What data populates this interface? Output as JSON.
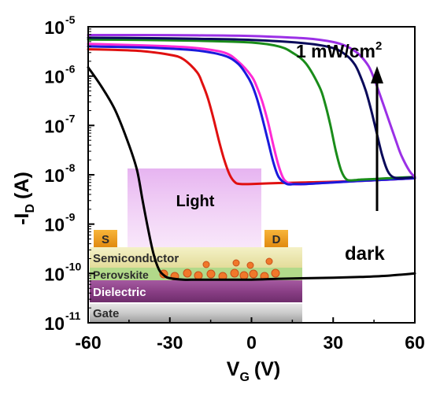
{
  "chart_data": {
    "type": "line",
    "title": "",
    "xlabel": "V",
    "xlabel_sub": "G",
    "xlabel_unit": "(V)",
    "ylabel": "-I",
    "ylabel_sub": "D",
    "ylabel_unit": "(A)",
    "xlim": [
      -60,
      60
    ],
    "ylim": [
      1e-11,
      1e-05
    ],
    "yscale": "log",
    "x_ticks": [
      -60,
      -30,
      0,
      30,
      60
    ],
    "x_tick_labels": [
      "-60",
      "-30",
      "0",
      "30",
      "60"
    ],
    "y_ticks": [
      -11,
      -10,
      -9,
      -8,
      -7,
      -6,
      -5
    ],
    "y_tick_base": "10",
    "y_tick_exps": [
      "-11",
      "-10",
      "-9",
      "-8",
      "-7",
      "-6",
      "-5"
    ],
    "grid": false,
    "legend": "none",
    "annotations": {
      "intensity": "1 mW/cm",
      "intensity_sup": "2",
      "dark": "dark",
      "light": "Light"
    },
    "inset": {
      "source": "S",
      "drain": "D",
      "layers": [
        "Semiconductor",
        "Perovskite",
        "Dielectric",
        "Gate"
      ]
    },
    "series": [
      {
        "color": "#000000",
        "x": [
          -60,
          -55,
          -50,
          -45,
          -42,
          -40,
          -38,
          -36,
          -34,
          -32,
          -30,
          -25,
          -20,
          -10,
          0,
          10,
          20,
          30,
          40,
          50,
          60
        ],
        "y": [
          1.5e-06,
          6e-07,
          2e-07,
          4e-08,
          1.2e-08,
          3e-09,
          8e-10,
          2.5e-10,
          1.2e-10,
          9e-11,
          8e-11,
          7.5e-11,
          7.5e-11,
          7.5e-11,
          7.5e-11,
          7.8e-11,
          8e-11,
          8.2e-11,
          8.5e-11,
          9e-11,
          1e-10
        ]
      },
      {
        "color": "#e01010",
        "x": [
          -60,
          -50,
          -40,
          -30,
          -25,
          -20,
          -18,
          -16,
          -14,
          -12,
          -10,
          -8,
          -6,
          -4,
          0,
          10,
          20,
          30,
          40,
          50,
          60
        ],
        "y": [
          3.5e-06,
          3.4e-06,
          3.2e-06,
          2.7e-06,
          2.2e-06,
          1.2e-06,
          7e-07,
          3.5e-07,
          1.4e-07,
          5e-08,
          2e-08,
          1e-08,
          7e-09,
          6.5e-09,
          6.5e-09,
          6.8e-09,
          7e-09,
          7.2e-09,
          7.5e-09,
          8e-09,
          8.5e-09
        ]
      },
      {
        "color": "#ff2ad4",
        "x": [
          -60,
          -40,
          -30,
          -20,
          -10,
          -5,
          0,
          2,
          4,
          6,
          8,
          10,
          12,
          15,
          20,
          30,
          40,
          50,
          60
        ],
        "y": [
          4.5e-06,
          4.2e-06,
          4e-06,
          3.7e-06,
          3e-06,
          2e-06,
          1e-06,
          6e-07,
          3e-07,
          1.2e-07,
          4e-08,
          1.5e-08,
          8e-09,
          6.5e-09,
          6.5e-09,
          7e-09,
          7.5e-09,
          8e-09,
          8.5e-09
        ]
      },
      {
        "color": "#1a1adc",
        "x": [
          -60,
          -40,
          -30,
          -20,
          -10,
          -5,
          -2,
          0,
          2,
          4,
          6,
          8,
          10,
          13,
          16,
          20,
          30,
          40,
          50,
          60
        ],
        "y": [
          4e-06,
          3.8e-06,
          3.6e-06,
          3.3e-06,
          2.6e-06,
          1.8e-06,
          1.1e-06,
          7e-07,
          3.5e-07,
          1.4e-07,
          5e-08,
          1.8e-08,
          9e-09,
          6.5e-09,
          6.5e-09,
          6.5e-09,
          7e-09,
          7.5e-09,
          8e-09,
          8.5e-09
        ]
      },
      {
        "color": "#1a8c1a",
        "x": [
          -60,
          -40,
          -20,
          0,
          10,
          15,
          20,
          25,
          27,
          29,
          31,
          33,
          35,
          38,
          40,
          45,
          50,
          55,
          60
        ],
        "y": [
          5.5e-06,
          5.4e-06,
          5.2e-06,
          4.8e-06,
          4e-06,
          3e-06,
          1.8e-06,
          6e-07,
          2.8e-07,
          1e-07,
          3e-08,
          1.2e-08,
          8e-09,
          7.8e-09,
          8e-09,
          8.2e-09,
          8.5e-09,
          8.8e-09,
          9e-09
        ]
      },
      {
        "color": "#0a0a5a",
        "x": [
          -60,
          -40,
          -20,
          0,
          20,
          30,
          35,
          38,
          40,
          42,
          44,
          46,
          48,
          50,
          52,
          55,
          60
        ],
        "y": [
          6e-06,
          5.9e-06,
          5.7e-06,
          5.4e-06,
          4.6e-06,
          3.7e-06,
          2.6e-06,
          1.7e-06,
          1e-06,
          5e-07,
          2e-07,
          7e-08,
          2.5e-08,
          1.2e-08,
          9e-09,
          8.5e-09,
          9e-09
        ]
      },
      {
        "color": "#9b30e6",
        "x": [
          -60,
          -40,
          -20,
          0,
          20,
          30,
          35,
          38,
          40,
          43,
          45,
          47,
          50,
          53,
          55,
          58,
          60
        ],
        "y": [
          6.8e-06,
          6.8e-06,
          6.7e-06,
          6.5e-06,
          5.8e-06,
          4.9e-06,
          4e-06,
          3.2e-06,
          2.6e-06,
          1.6e-06,
          9e-07,
          4.5e-07,
          1.5e-07,
          5e-08,
          2.5e-08,
          1.2e-08,
          9e-09
        ]
      }
    ]
  }
}
